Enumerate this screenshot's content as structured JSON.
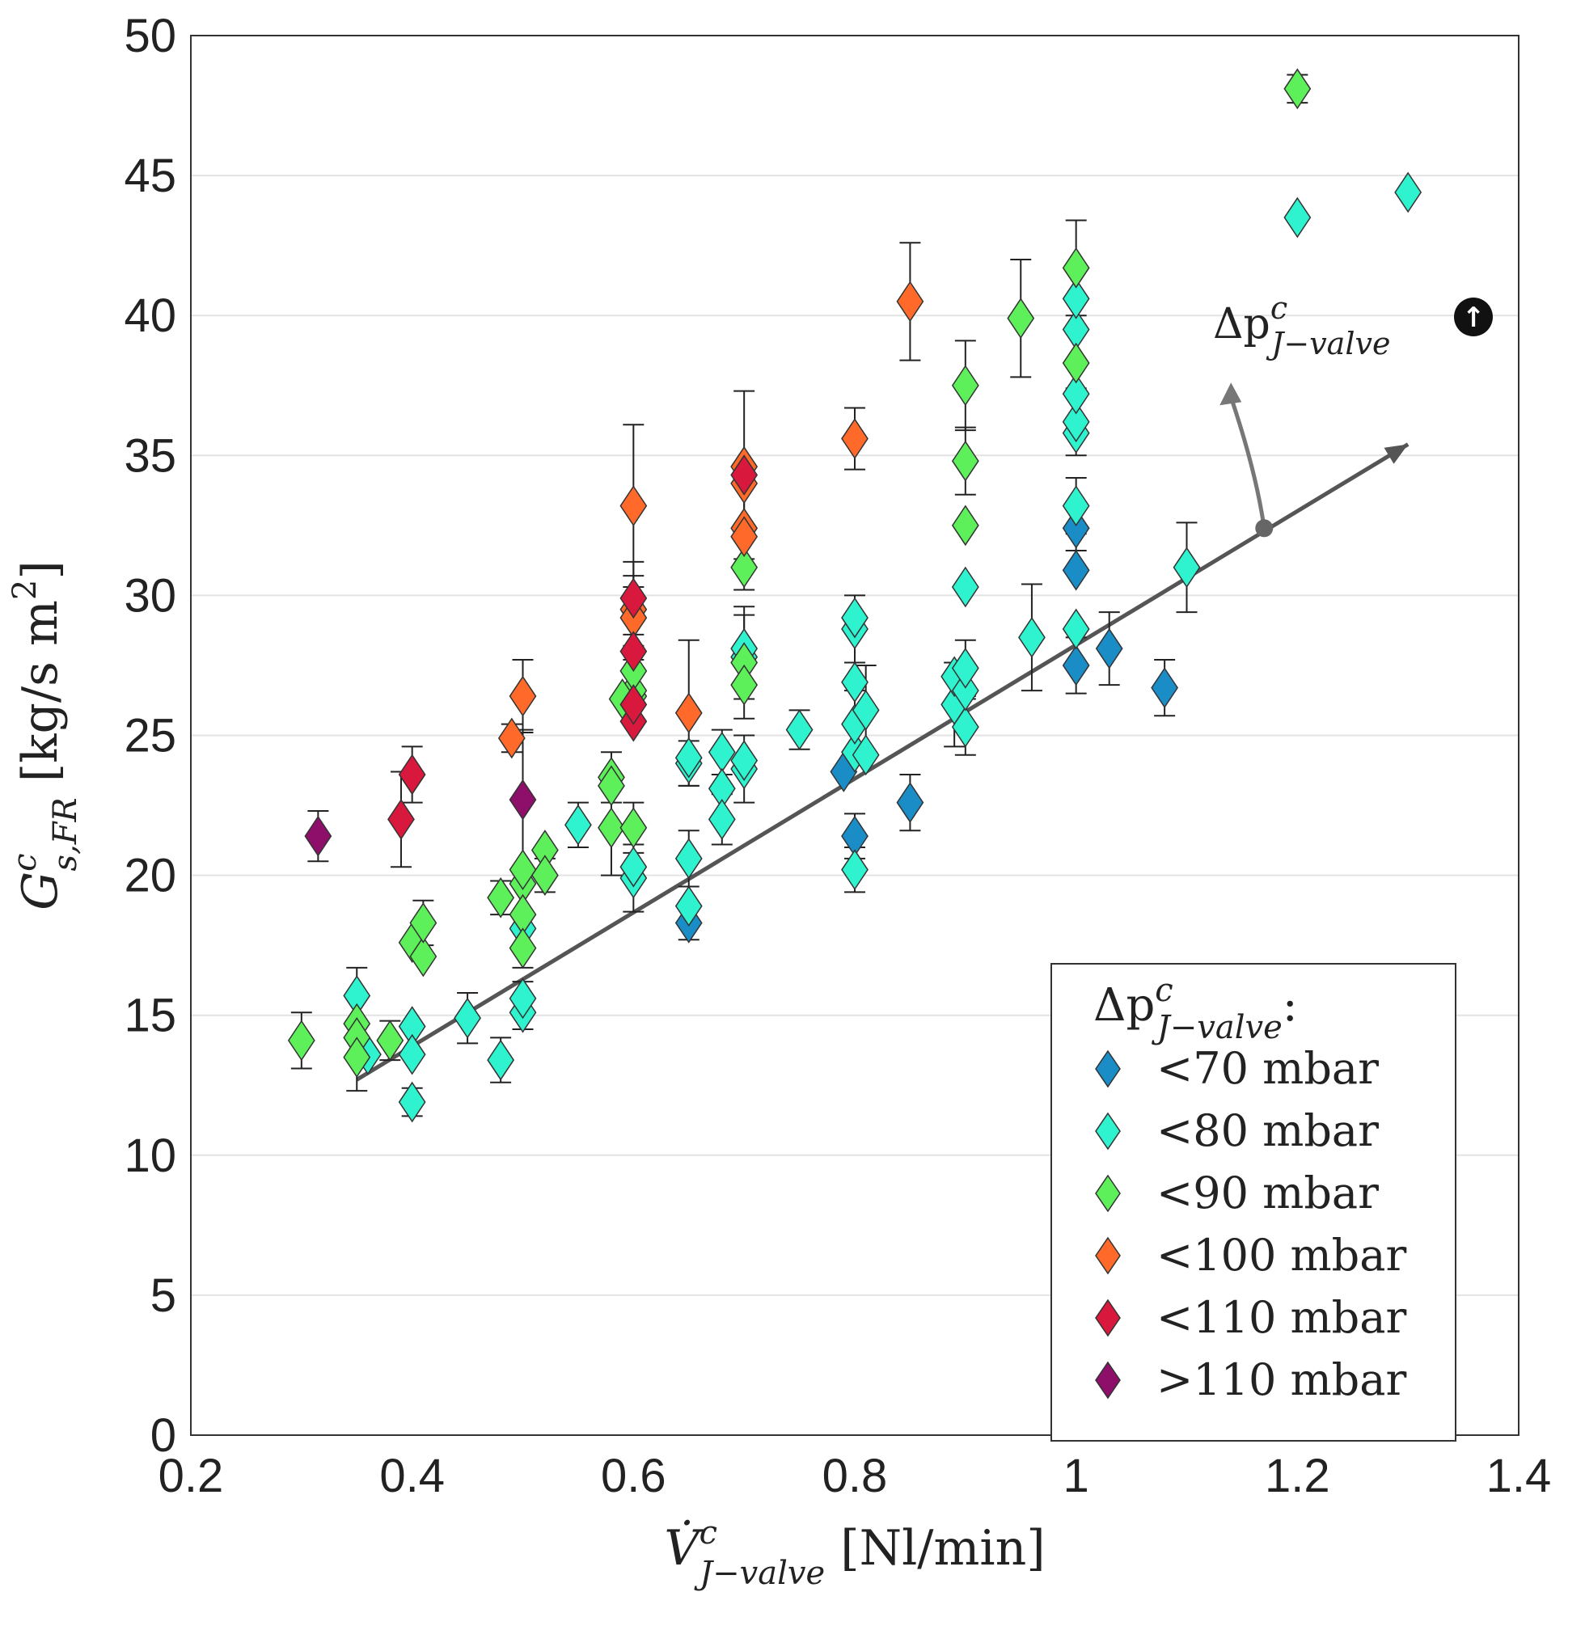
{
  "chart_data": {
    "type": "scatter",
    "xlabel": "V̇",
    "xlabel_sup": "c",
    "xlabel_sub": "J−valve",
    "xlabel_unit": " [Nl/min]",
    "ylabel": "G",
    "ylabel_sup": "c",
    "ylabel_sub": "s,FR",
    "ylabel_unit": " [kg/s m",
    "ylabel_unit_sup": "2",
    "ylabel_unit_end": "]",
    "xlim": [
      0.2,
      1.4
    ],
    "ylim": [
      0,
      50
    ],
    "xticks": [
      "0.2",
      "0.4",
      "0.6",
      "0.8",
      "1",
      "1.2",
      "1.4"
    ],
    "yticks": [
      "0",
      "5",
      "10",
      "15",
      "20",
      "25",
      "30",
      "35",
      "40",
      "45",
      "50"
    ],
    "grid": "horizontal",
    "legend_placement": "bottom-right",
    "legend_title": "Δp",
    "legend_title_sup": "c",
    "legend_title_sub": "J−valve",
    "legend_title_end": ":",
    "annotation": {
      "text": "Δp",
      "sup": "c",
      "sub": "J−valve",
      "symbol": "↑"
    },
    "trend_line": {
      "x": [
        0.35,
        1.3
      ],
      "y": [
        12.7,
        35.4
      ],
      "pivot": [
        1.17,
        32.4
      ],
      "arrow_to": [
        1.14,
        37.6
      ]
    },
    "series": [
      {
        "name": "<70 mbar",
        "color": "#1a8cc6",
        "points": [
          [
            0.65,
            18.3,
            0.6
          ],
          [
            0.79,
            23.7,
            0
          ],
          [
            0.8,
            21.4,
            0.8
          ],
          [
            0.85,
            22.6,
            1.0
          ],
          [
            1.0,
            27.5,
            1.0
          ],
          [
            1.0,
            30.9,
            0
          ],
          [
            1.0,
            32.4,
            0.8
          ],
          [
            1.03,
            28.1,
            1.3
          ],
          [
            1.08,
            26.7,
            1.0
          ]
        ]
      },
      {
        "name": "<80 mbar",
        "color": "#2ff3cf",
        "points": [
          [
            0.35,
            15.7,
            1.0
          ],
          [
            0.36,
            13.6,
            0
          ],
          [
            0.4,
            14.6,
            0
          ],
          [
            0.4,
            13.6,
            0
          ],
          [
            0.4,
            11.9,
            0.5
          ],
          [
            0.45,
            14.9,
            0.9
          ],
          [
            0.48,
            13.4,
            0.8
          ],
          [
            0.5,
            15.1,
            0.6
          ],
          [
            0.5,
            15.6,
            0.6
          ],
          [
            0.5,
            18.1,
            0
          ],
          [
            0.55,
            21.8,
            0.8
          ],
          [
            0.6,
            19.9,
            1.2
          ],
          [
            0.6,
            20.3,
            0
          ],
          [
            0.65,
            20.6,
            1.0
          ],
          [
            0.65,
            18.9,
            0
          ],
          [
            0.65,
            24.0,
            0.8
          ],
          [
            0.65,
            24.2,
            0
          ],
          [
            0.68,
            24.4,
            0.8
          ],
          [
            0.68,
            23.1,
            0
          ],
          [
            0.68,
            22.0,
            0.9
          ],
          [
            0.7,
            23.8,
            1.2
          ],
          [
            0.7,
            24.1,
            0
          ],
          [
            0.7,
            27.8,
            1.5
          ],
          [
            0.7,
            28.1,
            0
          ],
          [
            0.75,
            25.2,
            0.7
          ],
          [
            0.8,
            20.2,
            0.8
          ],
          [
            0.8,
            24.4,
            0
          ],
          [
            0.8,
            25.4,
            1.2
          ],
          [
            0.8,
            26.9,
            0
          ],
          [
            0.8,
            28.8,
            1.2
          ],
          [
            0.8,
            29.2,
            0
          ],
          [
            0.81,
            25.9,
            1.6
          ],
          [
            0.81,
            24.3,
            0
          ],
          [
            0.89,
            26.1,
            1.5
          ],
          [
            0.89,
            27.1,
            0
          ],
          [
            0.9,
            25.3,
            1.0
          ],
          [
            0.9,
            26.6,
            0
          ],
          [
            0.9,
            27.4,
            1.0
          ],
          [
            0.9,
            30.3,
            0
          ],
          [
            0.96,
            28.5,
            1.9
          ],
          [
            1.0,
            28.8,
            0
          ],
          [
            1.0,
            33.2,
            1.0
          ],
          [
            1.0,
            35.8,
            0
          ],
          [
            1.0,
            36.2,
            1.2
          ],
          [
            1.0,
            37.2,
            0
          ],
          [
            1.0,
            39.5,
            0
          ],
          [
            1.0,
            40.6,
            1.2
          ],
          [
            1.1,
            31.0,
            1.6
          ],
          [
            1.2,
            43.5,
            0
          ],
          [
            1.3,
            44.4,
            0
          ]
        ]
      },
      {
        "name": "<90 mbar",
        "color": "#5ef05a",
        "points": [
          [
            0.3,
            14.1,
            1.0
          ],
          [
            0.35,
            14.7,
            0
          ],
          [
            0.35,
            14.2,
            0
          ],
          [
            0.35,
            13.5,
            1.2
          ],
          [
            0.38,
            14.1,
            0.7
          ],
          [
            0.4,
            17.6,
            0
          ],
          [
            0.41,
            17.1,
            0
          ],
          [
            0.41,
            18.3,
            0.8
          ],
          [
            0.48,
            19.2,
            0.6
          ],
          [
            0.5,
            19.7,
            0
          ],
          [
            0.5,
            20.2,
            0
          ],
          [
            0.5,
            18.6,
            0
          ],
          [
            0.5,
            17.4,
            0.7
          ],
          [
            0.52,
            20.9,
            0
          ],
          [
            0.52,
            20.0,
            0.6
          ],
          [
            0.58,
            23.5,
            0.9
          ],
          [
            0.58,
            23.2,
            0
          ],
          [
            0.58,
            21.7,
            1.7
          ],
          [
            0.6,
            21.7,
            0.9
          ],
          [
            0.6,
            26.4,
            0
          ],
          [
            0.6,
            26.6,
            0
          ],
          [
            0.6,
            27.3,
            0.9
          ],
          [
            0.59,
            26.3,
            0
          ],
          [
            0.7,
            31.0,
            0
          ],
          [
            0.7,
            27.6,
            2.0
          ],
          [
            0.7,
            26.8,
            0
          ],
          [
            0.9,
            37.5,
            1.6
          ],
          [
            0.9,
            34.8,
            1.2
          ],
          [
            0.9,
            32.5,
            0
          ],
          [
            0.95,
            39.9,
            2.1
          ],
          [
            1.0,
            41.7,
            1.7
          ],
          [
            1.0,
            38.3,
            0
          ],
          [
            1.2,
            48.1,
            0.5
          ]
        ]
      },
      {
        "name": "<100 mbar",
        "color": "#ff6a2a",
        "points": [
          [
            0.49,
            24.9,
            0.5
          ],
          [
            0.5,
            26.4,
            1.3
          ],
          [
            0.6,
            33.2,
            2.9
          ],
          [
            0.6,
            29.5,
            0
          ],
          [
            0.6,
            29.2,
            1.5
          ],
          [
            0.65,
            25.8,
            2.6
          ],
          [
            0.7,
            34.0,
            0
          ],
          [
            0.7,
            32.4,
            2.2
          ],
          [
            0.7,
            32.1,
            0
          ],
          [
            0.7,
            34.6,
            0
          ],
          [
            0.8,
            35.6,
            1.1
          ],
          [
            0.85,
            40.5,
            2.1
          ]
        ]
      },
      {
        "name": "<110 mbar",
        "color": "#d9183d",
        "points": [
          [
            0.39,
            22.0,
            1.7
          ],
          [
            0.4,
            23.6,
            1.0
          ],
          [
            0.6,
            25.5,
            0
          ],
          [
            0.6,
            26.1,
            0
          ],
          [
            0.6,
            28.0,
            0
          ],
          [
            0.6,
            29.9,
            1.3
          ],
          [
            0.7,
            34.3,
            3.0
          ]
        ]
      },
      {
        "name": ">110 mbar",
        "color": "#8e0f6a",
        "points": [
          [
            0.315,
            21.4,
            0.9
          ],
          [
            0.5,
            22.7,
            2.5
          ]
        ]
      }
    ]
  }
}
